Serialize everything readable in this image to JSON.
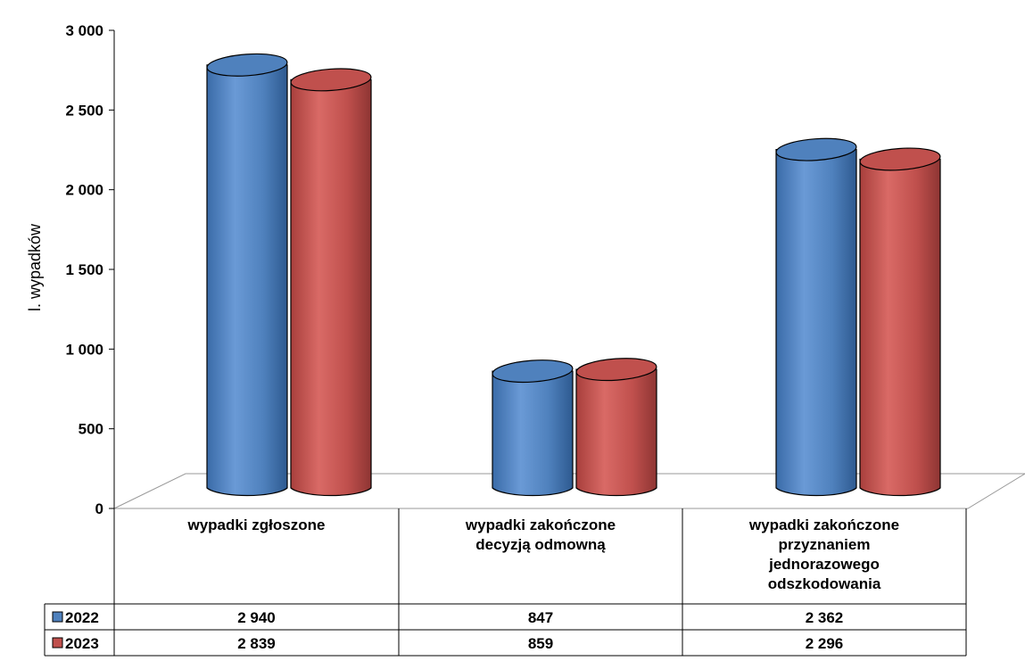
{
  "chart_data": {
    "type": "bar",
    "ylabel": "l. wypadków",
    "ylim": [
      0,
      3000
    ],
    "y_ticks": [
      "0",
      "500",
      "1 000",
      "1 500",
      "2 000",
      "2 500",
      "3 000"
    ],
    "y_tick_values": [
      0,
      500,
      1000,
      1500,
      2000,
      2500,
      3000
    ],
    "categories": [
      [
        "wypadki zgłoszone"
      ],
      [
        "wypadki zakończone",
        "decyzją odmowną"
      ],
      [
        "wypadki zakończone",
        "przyznaniem",
        "jednorazowego",
        "odszkodowania"
      ]
    ],
    "series": [
      {
        "name": "2022",
        "color": "#4F81BD",
        "values": [
          2940,
          847,
          2362
        ],
        "display": [
          "2 940",
          "847",
          "2 362"
        ]
      },
      {
        "name": "2023",
        "color": "#C0504D",
        "values": [
          2839,
          859,
          2296
        ],
        "display": [
          "2 839",
          "859",
          "2 296"
        ]
      }
    ],
    "shape": "cylinder",
    "legend": "data-table"
  }
}
